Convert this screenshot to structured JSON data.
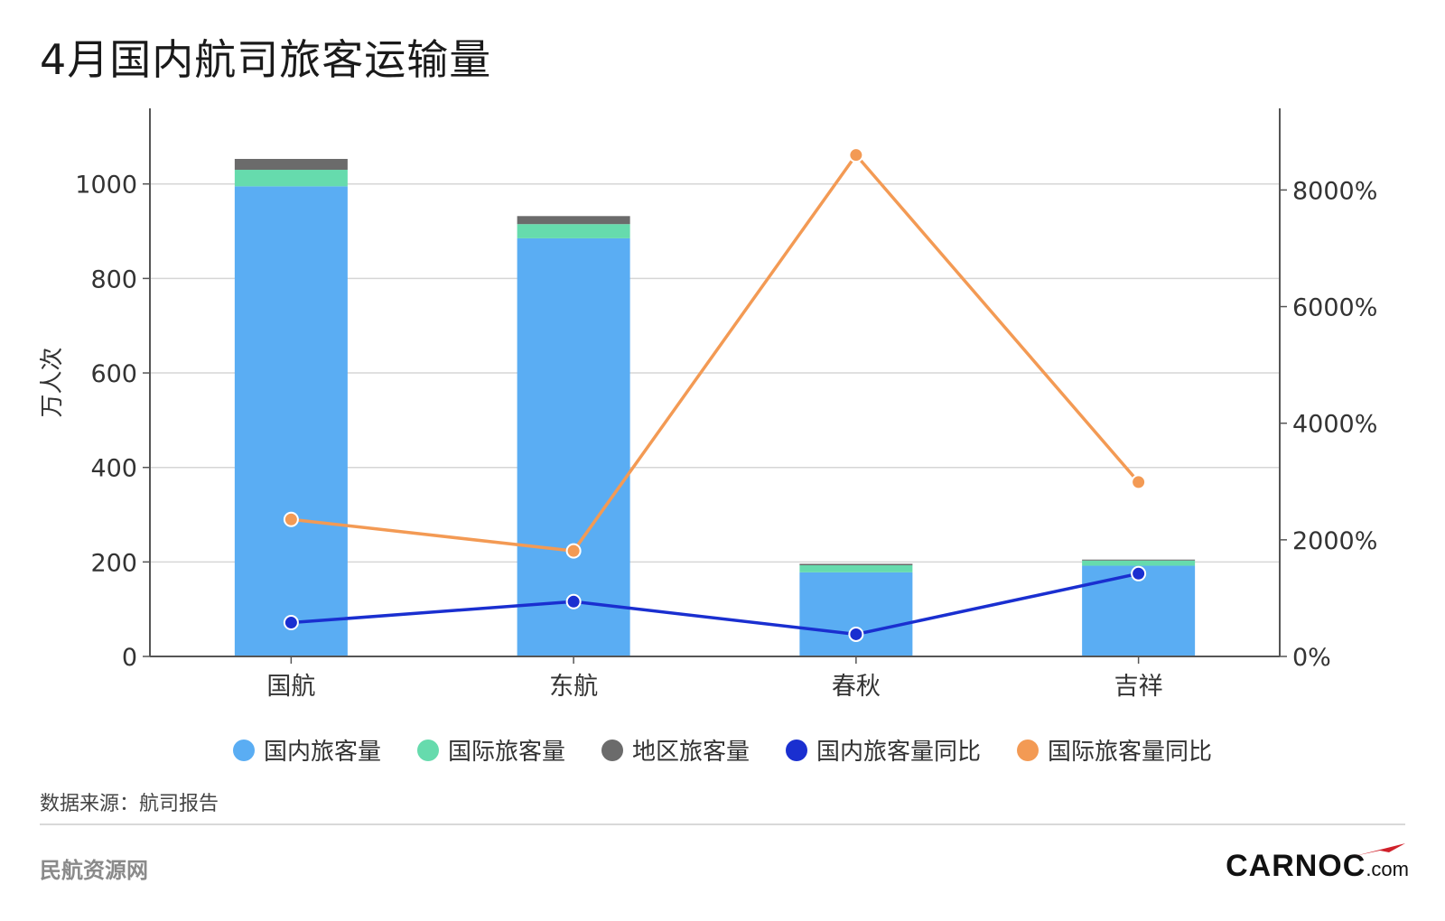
{
  "title": "4月国内航司旅客运输量",
  "source": "数据来源：航司报告",
  "footer_left": "民航资源网",
  "brand": {
    "main": "CARNOC",
    "suffix": ".com",
    "icon": "red-swoosh-icon"
  },
  "legend": [
    {
      "label": "国内旅客量",
      "color": "#5aadf3"
    },
    {
      "label": "国际旅客量",
      "color": "#66dbad"
    },
    {
      "label": "地区旅客量",
      "color": "#6b6b6b"
    },
    {
      "label": "国内旅客量同比",
      "color": "#1a2fd0"
    },
    {
      "label": "国际旅客量同比",
      "color": "#f39a54"
    }
  ],
  "chart_data": {
    "type": "bar",
    "categories": [
      "国航",
      "东航",
      "春秋",
      "吉祥"
    ],
    "ylabel": "万人次",
    "ylim": [
      0,
      1160
    ],
    "yticks": [
      "0",
      "200",
      "400",
      "600",
      "800",
      "1000"
    ],
    "y2lim": [
      0,
      9400
    ],
    "y2ticks": [
      "0%",
      "2000%",
      "4000%",
      "6000%",
      "8000%"
    ],
    "grid": true,
    "legend_position": "bottom",
    "series": [
      {
        "name": "国内旅客量",
        "type": "bar",
        "stack": "total",
        "axis": "left",
        "color": "#5aadf3",
        "values": [
          995,
          885,
          178,
          192
        ]
      },
      {
        "name": "国际旅客量",
        "type": "bar",
        "stack": "total",
        "axis": "left",
        "color": "#66dbad",
        "values": [
          35,
          30,
          15,
          11
        ]
      },
      {
        "name": "地区旅客量",
        "type": "bar",
        "stack": "total",
        "axis": "left",
        "color": "#6b6b6b",
        "values": [
          23,
          17,
          3,
          2
        ]
      },
      {
        "name": "国内旅客量同比",
        "type": "line",
        "axis": "right",
        "color": "#1a2fd0",
        "values": [
          580,
          940,
          380,
          1420
        ]
      },
      {
        "name": "国际旅客量同比",
        "type": "line",
        "axis": "right",
        "color": "#f39a54",
        "values": [
          2350,
          1810,
          8600,
          2990
        ]
      }
    ]
  }
}
